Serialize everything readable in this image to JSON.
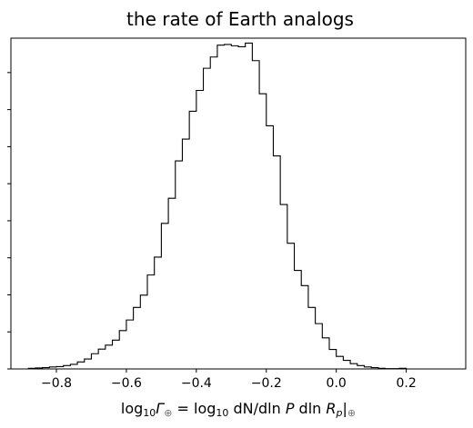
{
  "chart_data": {
    "type": "bar",
    "title": "the rate of Earth analogs",
    "xlabel": {
      "prefix": "log",
      "prefix_sub": "10",
      "gamma": "Γ",
      "gamma_sub": "⊕",
      "eq": " = ",
      "log2": "log",
      "log2_sub": "10",
      "body1": " dN/dln",
      "P": " P",
      "body2": " dln",
      "R": " R",
      "R_sub": "p",
      "bar": "|",
      "bar_sub": "⊕"
    },
    "xlim": [
      -0.93,
      0.37
    ],
    "ylim": [
      0,
      1.0
    ],
    "y_tick_labels_shown": false,
    "y_ticks": [
      0.0,
      0.112,
      0.224,
      0.336,
      0.448,
      0.56,
      0.672,
      0.784,
      0.896
    ],
    "x_ticks": [
      -0.8,
      -0.6,
      -0.4,
      -0.2,
      0.0,
      0.2
    ],
    "x_tick_labels": [
      "−0.8",
      "−0.6",
      "−0.4",
      "−0.2",
      "0.0",
      "0.2"
    ],
    "histtype": "step",
    "color": "#000000",
    "bin_edges": [
      -0.9,
      -0.88,
      -0.86,
      -0.84,
      -0.82,
      -0.8,
      -0.78,
      -0.76,
      -0.74,
      -0.72,
      -0.7,
      -0.68,
      -0.66,
      -0.64,
      -0.62,
      -0.6,
      -0.58,
      -0.56,
      -0.54,
      -0.52,
      -0.5,
      -0.48,
      -0.46,
      -0.44,
      -0.42,
      -0.4,
      -0.38,
      -0.36,
      -0.34,
      -0.32,
      -0.3,
      -0.28,
      -0.26,
      -0.24,
      -0.22,
      -0.2,
      -0.18,
      -0.16,
      -0.14,
      -0.12,
      -0.1,
      -0.08,
      -0.06,
      -0.04,
      -0.02,
      0.0,
      0.02,
      0.04,
      0.06,
      0.08,
      0.1,
      0.12,
      0.14,
      0.16,
      0.18,
      0.2,
      0.22,
      0.24,
      0.26,
      0.28,
      0.3
    ],
    "counts": [
      0.0,
      0.002,
      0.003,
      0.004,
      0.006,
      0.007,
      0.01,
      0.014,
      0.021,
      0.03,
      0.046,
      0.06,
      0.072,
      0.087,
      0.116,
      0.148,
      0.186,
      0.223,
      0.284,
      0.338,
      0.44,
      0.516,
      0.629,
      0.695,
      0.779,
      0.842,
      0.909,
      0.943,
      0.979,
      0.981,
      0.977,
      0.974,
      0.985,
      0.932,
      0.832,
      0.735,
      0.644,
      0.497,
      0.38,
      0.298,
      0.252,
      0.186,
      0.137,
      0.094,
      0.059,
      0.038,
      0.026,
      0.016,
      0.01,
      0.006,
      0.004,
      0.002,
      0.001,
      0.001,
      0.002,
      0.0,
      0.0,
      0.0,
      0.0,
      0.0
    ]
  }
}
